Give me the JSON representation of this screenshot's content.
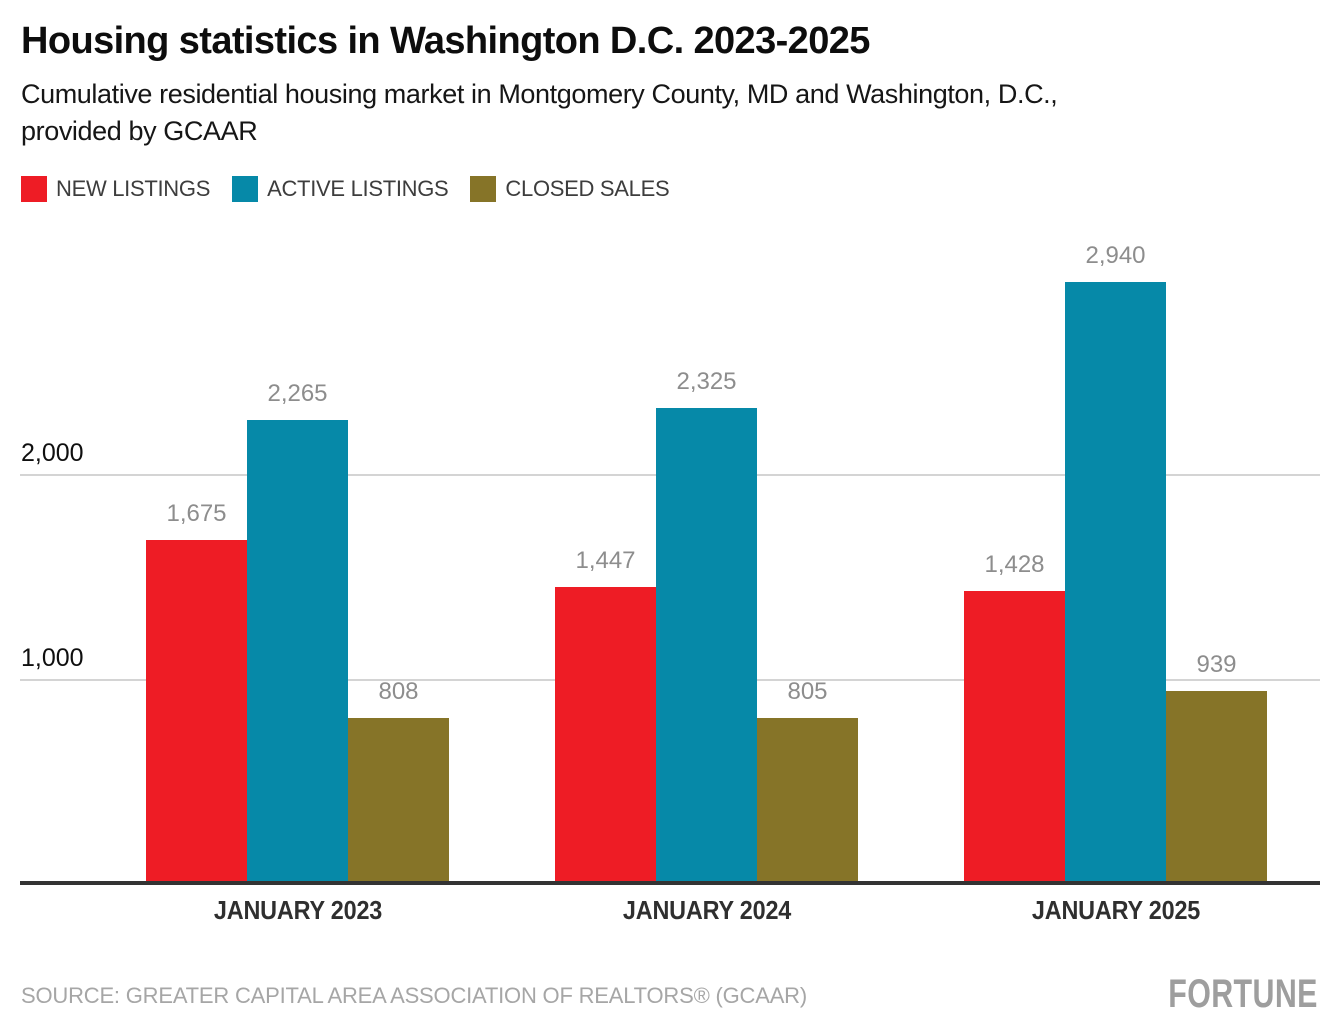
{
  "header": {
    "title": "Housing statistics in Washington D.C. 2023-2025",
    "subtitle_line1": "Cumulative residential housing market in Montgomery County, MD and Washington, D.C.,",
    "subtitle_line2": "provided by GCAAR"
  },
  "legend": {
    "items": [
      {
        "label": "NEW LISTINGS",
        "color": "#ee1c25"
      },
      {
        "label": "ACTIVE LISTINGS",
        "color": "#0689a8"
      },
      {
        "label": "CLOSED SALES",
        "color": "#867428"
      }
    ]
  },
  "chart_data": {
    "type": "bar",
    "title": "Housing statistics in Washington D.C. 2023-2025",
    "categories": [
      "JANUARY 2023",
      "JANUARY 2024",
      "JANUARY 2025"
    ],
    "series": [
      {
        "name": "NEW LISTINGS",
        "color": "#ee1c25",
        "values": [
          1675,
          1447,
          1428
        ],
        "labels": [
          "1,675",
          "1,447",
          "1,428"
        ]
      },
      {
        "name": "ACTIVE LISTINGS",
        "color": "#0689a8",
        "values": [
          2265,
          2325,
          2940
        ],
        "labels": [
          "2,265",
          "2,325",
          "2,940"
        ]
      },
      {
        "name": "CLOSED SALES",
        "color": "#867428",
        "values": [
          808,
          805,
          939
        ],
        "labels": [
          "808",
          "805",
          "939"
        ]
      }
    ],
    "yticks": [
      {
        "value": 1000,
        "label": "1,000"
      },
      {
        "value": 2000,
        "label": "2,000"
      }
    ],
    "ylim": [
      0,
      3100
    ],
    "grid": "horizontal",
    "legend_position": "top",
    "xlabel": "",
    "ylabel": ""
  },
  "footer": {
    "source": "SOURCE: GREATER CAPITAL AREA ASSOCIATION OF REALTORS® (GCAAR)",
    "brand": "FORTUNE"
  },
  "colors": {
    "new_listings": "#ee1c25",
    "active_listings": "#0689a8",
    "closed_sales": "#867428",
    "gridline": "#d4d4d4",
    "axis_line": "#333333",
    "value_label": "#8d8d8d",
    "tick_label": "#0f0f0f",
    "source_text": "#a6a6a6",
    "brand": "#9e9e9e"
  }
}
